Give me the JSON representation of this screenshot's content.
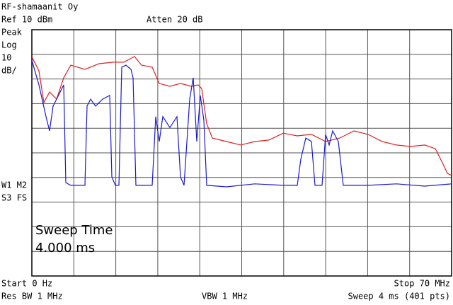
{
  "chart_data": {
    "type": "line",
    "title": "RF-shamaanit Oy",
    "header_left": [
      "Ref 10 dBm",
      "Peak",
      "Log",
      "10",
      "dB/"
    ],
    "header_center": "Atten 20 dB",
    "side_labels": [
      "W1 M2",
      "S3 FS"
    ],
    "annotation": [
      "Sweep Time",
      "4.000 ms"
    ],
    "footer": {
      "start": "Start 0 Hz",
      "stop": "Stop 70 MHz",
      "rbw": "Res BW 1 MHz",
      "vbw": "VBW 1 MHz",
      "sweep": "Sweep 4 ms (401 pts)"
    },
    "xlim": [
      0,
      70
    ],
    "ylim": [
      -90,
      10
    ],
    "xticks": [
      0,
      7,
      14,
      21,
      28,
      35,
      42,
      49,
      56,
      63,
      70
    ],
    "yticks": [
      10,
      0,
      -10,
      -20,
      -30,
      -40,
      -50,
      -60,
      -70,
      -80,
      -90
    ],
    "grid": true,
    "series": [
      {
        "color": "#e02020",
        "x": [
          0,
          1.18,
          2.01,
          2.95,
          4.13,
          5.31,
          6.49,
          8.85,
          11.21,
          13.57,
          15.35,
          17.12,
          18.3,
          20.07,
          21.25,
          23.02,
          24.79,
          26.56,
          27.74,
          28.33,
          29.16,
          30.1,
          32.46,
          34.82,
          37.18,
          39.54,
          41.9,
          44.27,
          46.63,
          48.99,
          51.35,
          53.71,
          56.07,
          58.43,
          60.79,
          63.15,
          65.51,
          67.28,
          68.46,
          69.29,
          70
        ],
        "values": [
          -1,
          -6.7,
          -19.6,
          -15.3,
          -18.2,
          -9.5,
          -4.4,
          -6.1,
          -3.8,
          -3.2,
          -3.2,
          -0.9,
          -4.4,
          -5.2,
          -11.8,
          -13,
          -11.8,
          -13,
          -12.4,
          -13.9,
          -28.2,
          -34,
          -35.4,
          -36.8,
          -35.4,
          -34.8,
          -32,
          -33.1,
          -32.5,
          -35.4,
          -34,
          -31.1,
          -32.5,
          -35.4,
          -36.8,
          -37.4,
          -36.8,
          -38.3,
          -44,
          -48.3,
          -49.2
        ]
      },
      {
        "color": "#1a1ad0",
        "x": [
          0,
          1.18,
          2.36,
          2.95,
          3.54,
          4.72,
          5.31,
          5.67,
          6.49,
          8.85,
          9.21,
          9.8,
          10.62,
          11.8,
          12.98,
          13.34,
          13.93,
          14.52,
          14.99,
          15.7,
          16.53,
          16.88,
          17.35,
          20.07,
          20.66,
          21.25,
          21.84,
          23.02,
          24.2,
          24.79,
          25.38,
          26.32,
          26.91,
          27.5,
          28.09,
          28.68,
          29.16,
          32.46,
          37.18,
          41.9,
          44.27,
          44.86,
          45.68,
          46.63,
          47.22,
          48.4,
          48.99,
          49.58,
          50.17,
          51.11,
          51.94,
          56.07,
          60.79,
          65.51,
          70
        ],
        "values": [
          -2.4,
          -12.4,
          -25.3,
          -31.1,
          -21,
          -15.3,
          -12.4,
          -52.1,
          -53.2,
          -53.2,
          -21,
          -18.2,
          -21,
          -18.2,
          -16.7,
          -49.8,
          -53.2,
          -53.2,
          -5.2,
          -4.4,
          -6.1,
          -9.5,
          -53.2,
          -53.2,
          -25.3,
          -35.4,
          -25.3,
          -29.7,
          -25.3,
          -49.8,
          -53.2,
          -18.2,
          -9.5,
          -35.4,
          -16.7,
          -26.8,
          -53.2,
          -53.8,
          -52.6,
          -53.2,
          -53.2,
          -42.6,
          -34,
          -35.4,
          -53.2,
          -53.2,
          -32.5,
          -36.8,
          -31.1,
          -35.4,
          -53.2,
          -53.2,
          -52.6,
          -53.5,
          -52.6
        ]
      }
    ]
  }
}
